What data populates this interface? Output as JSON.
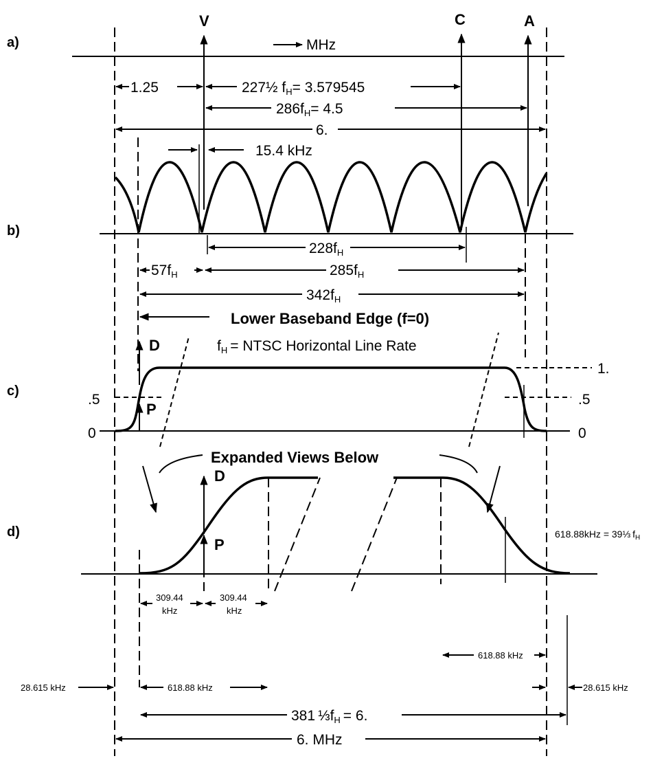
{
  "parts": {
    "a": "a)",
    "b": "b)",
    "c": "c)",
    "d": "d)"
  },
  "carriers": {
    "v": "V",
    "c": "C",
    "a": "A"
  },
  "a": {
    "mhz": "MHz",
    "d1": "1.25",
    "d2": "227½ f",
    "d2_sub": "H",
    "d2_val": "= 3.579545",
    "d3": "286f",
    "d3_sub": "H",
    "d3_val": "= 4.5",
    "d4": "6.",
    "khz": "15.4 kHz"
  },
  "b": {
    "d1": "228f",
    "d2": "57f",
    "d3": "285f",
    "d4": "342f",
    "sub": "H",
    "edge": "Lower Baseband Edge (f=0)",
    "fh": "f",
    "fh_sub": "H",
    "fh_def": "= NTSC Horizontal Line Rate"
  },
  "c": {
    "d": "D",
    "p": "P",
    "one": "1.",
    "half_l": ".5",
    "half_r": ".5",
    "zero_l": "0",
    "zero_r": "0",
    "expanded": "Expanded Views Below"
  },
  "d": {
    "d": "D",
    "p": "P",
    "k1": "309.44",
    "k2": "kHz",
    "k3": "309.44",
    "k4": "kHz",
    "w1": "618.88 kHz",
    "w2": "618.88 kHz",
    "e1": "28.615 kHz",
    "e2": "28.615 kHz",
    "total": "381",
    "frac": "⅓",
    "total_f": "f",
    "total_sub": "H",
    "total_val": "= 6.",
    "mhz": "6. MHz",
    "note": "618.88kHz  = 39",
    "note_frac": "⅓",
    "note_f": "f",
    "note_sub": "H"
  }
}
